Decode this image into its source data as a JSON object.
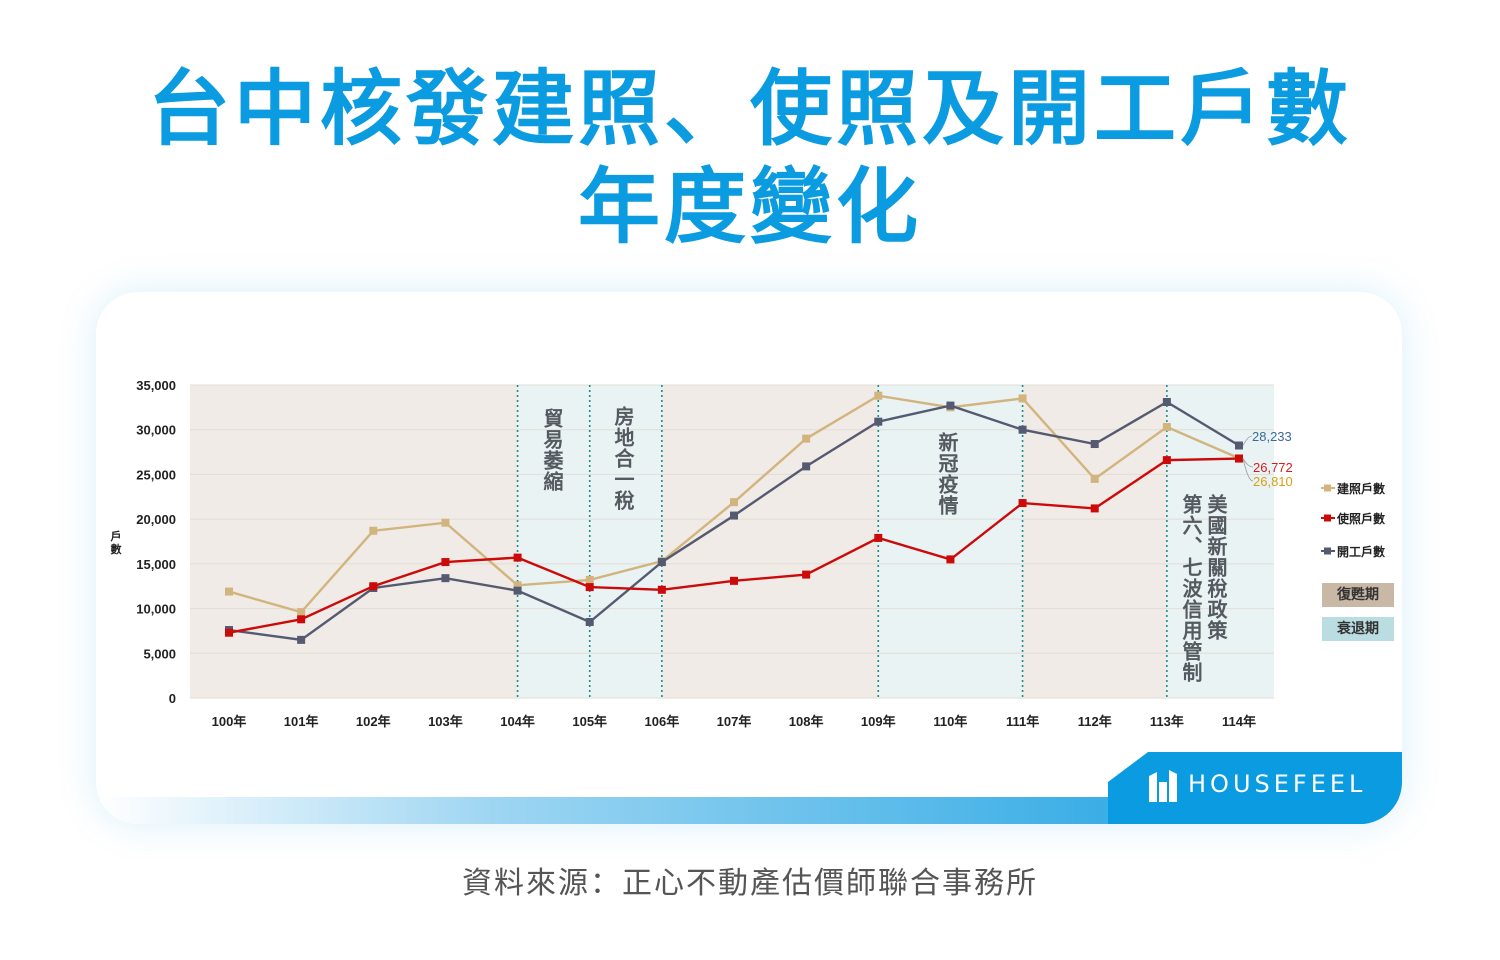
{
  "title_line1": "台中核發建照、使照及開工戶數",
  "title_line2": "年度變化",
  "source": "資料來源：正心不動產估價師聯合事務所",
  "brand": "HOUSEFEEL",
  "colors": {
    "accent": "#0a9be0",
    "revival": "#c9b8a6",
    "recession": "#b9dde0"
  },
  "chart_data": {
    "type": "line",
    "title": "",
    "xlabel": "",
    "ylabel": "戶數",
    "ylim": [
      0,
      35000
    ],
    "yticks": [
      "0",
      "5,000",
      "10,000",
      "15,000",
      "20,000",
      "25,000",
      "30,000",
      "35,000"
    ],
    "grid": true,
    "legend_position": "right",
    "categories": [
      "100年",
      "101年",
      "102年",
      "103年",
      "104年",
      "105年",
      "106年",
      "107年",
      "108年",
      "109年",
      "110年",
      "111年",
      "112年",
      "113年",
      "114年"
    ],
    "series": [
      {
        "name": "建照戶數",
        "color": "#d2b57e",
        "values": [
          11900,
          9600,
          18700,
          19600,
          12600,
          13200,
          15300,
          21900,
          29000,
          33800,
          32500,
          33500,
          24500,
          30300,
          26810
        ]
      },
      {
        "name": "使照戶數",
        "color": "#cc0a0a",
        "values": [
          7300,
          8800,
          12500,
          15200,
          15700,
          12400,
          12100,
          13100,
          13800,
          17900,
          15500,
          21800,
          21200,
          26600,
          26772
        ]
      },
      {
        "name": "開工戶數",
        "color": "#555a70",
        "values": [
          7600,
          6500,
          12300,
          13400,
          12000,
          8500,
          15200,
          20400,
          25900,
          30900,
          32700,
          30000,
          28400,
          33100,
          28233
        ]
      }
    ],
    "end_labels": [
      {
        "text": "28,233",
        "color": "#3b6a99"
      },
      {
        "text": "26,772",
        "color": "#d81c1c"
      },
      {
        "text": "26,810",
        "color": "#d4a017"
      }
    ],
    "phases": {
      "revival_label": "復甦期",
      "recession_label": "衰退期",
      "bands": [
        {
          "from": "100年",
          "to": "104年",
          "type": "revival"
        },
        {
          "from": "104年",
          "to": "106年",
          "type": "recession"
        },
        {
          "from": "106年",
          "to": "109年",
          "type": "revival"
        },
        {
          "from": "109年",
          "to": "111年",
          "type": "recession"
        },
        {
          "from": "111年",
          "to": "113年",
          "type": "revival"
        },
        {
          "from": "113年",
          "to": "114年",
          "type": "recession"
        }
      ]
    },
    "events": [
      {
        "at": "104年",
        "label": "貿易萎縮"
      },
      {
        "at": "105年",
        "label": "房地合一稅"
      },
      {
        "at": "109年",
        "label": "新冠疫情"
      },
      {
        "at": "113年",
        "label": "美國新關稅政策"
      },
      {
        "at": "113年",
        "label": "第六、七波信用管制"
      }
    ],
    "event_lines": [
      "104年",
      "105年",
      "106年",
      "109年",
      "111年",
      "113年"
    ]
  }
}
